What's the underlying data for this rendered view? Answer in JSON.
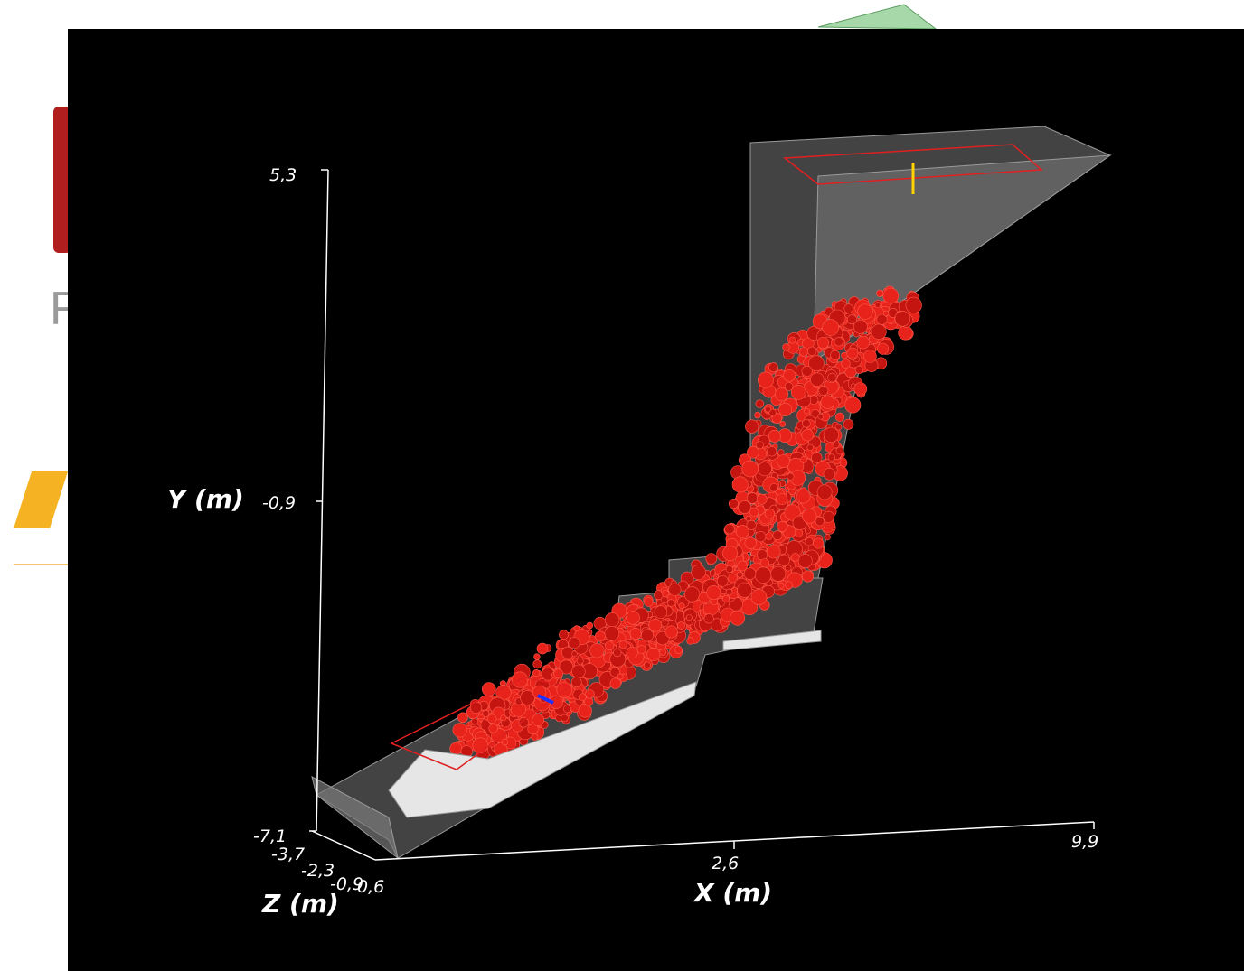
{
  "background": {
    "text": "R"
  },
  "axes": {
    "y": {
      "title": "Y (m)",
      "ticks": [
        "5,3",
        "-0,9",
        "-7,1"
      ]
    },
    "z": {
      "title": "Z (m)",
      "ticks": [
        "-3,7",
        "-2,3",
        "-0,9",
        "0,6"
      ]
    },
    "x": {
      "title": "X (m)",
      "ticks": [
        "2,6",
        "9,9"
      ]
    }
  }
}
